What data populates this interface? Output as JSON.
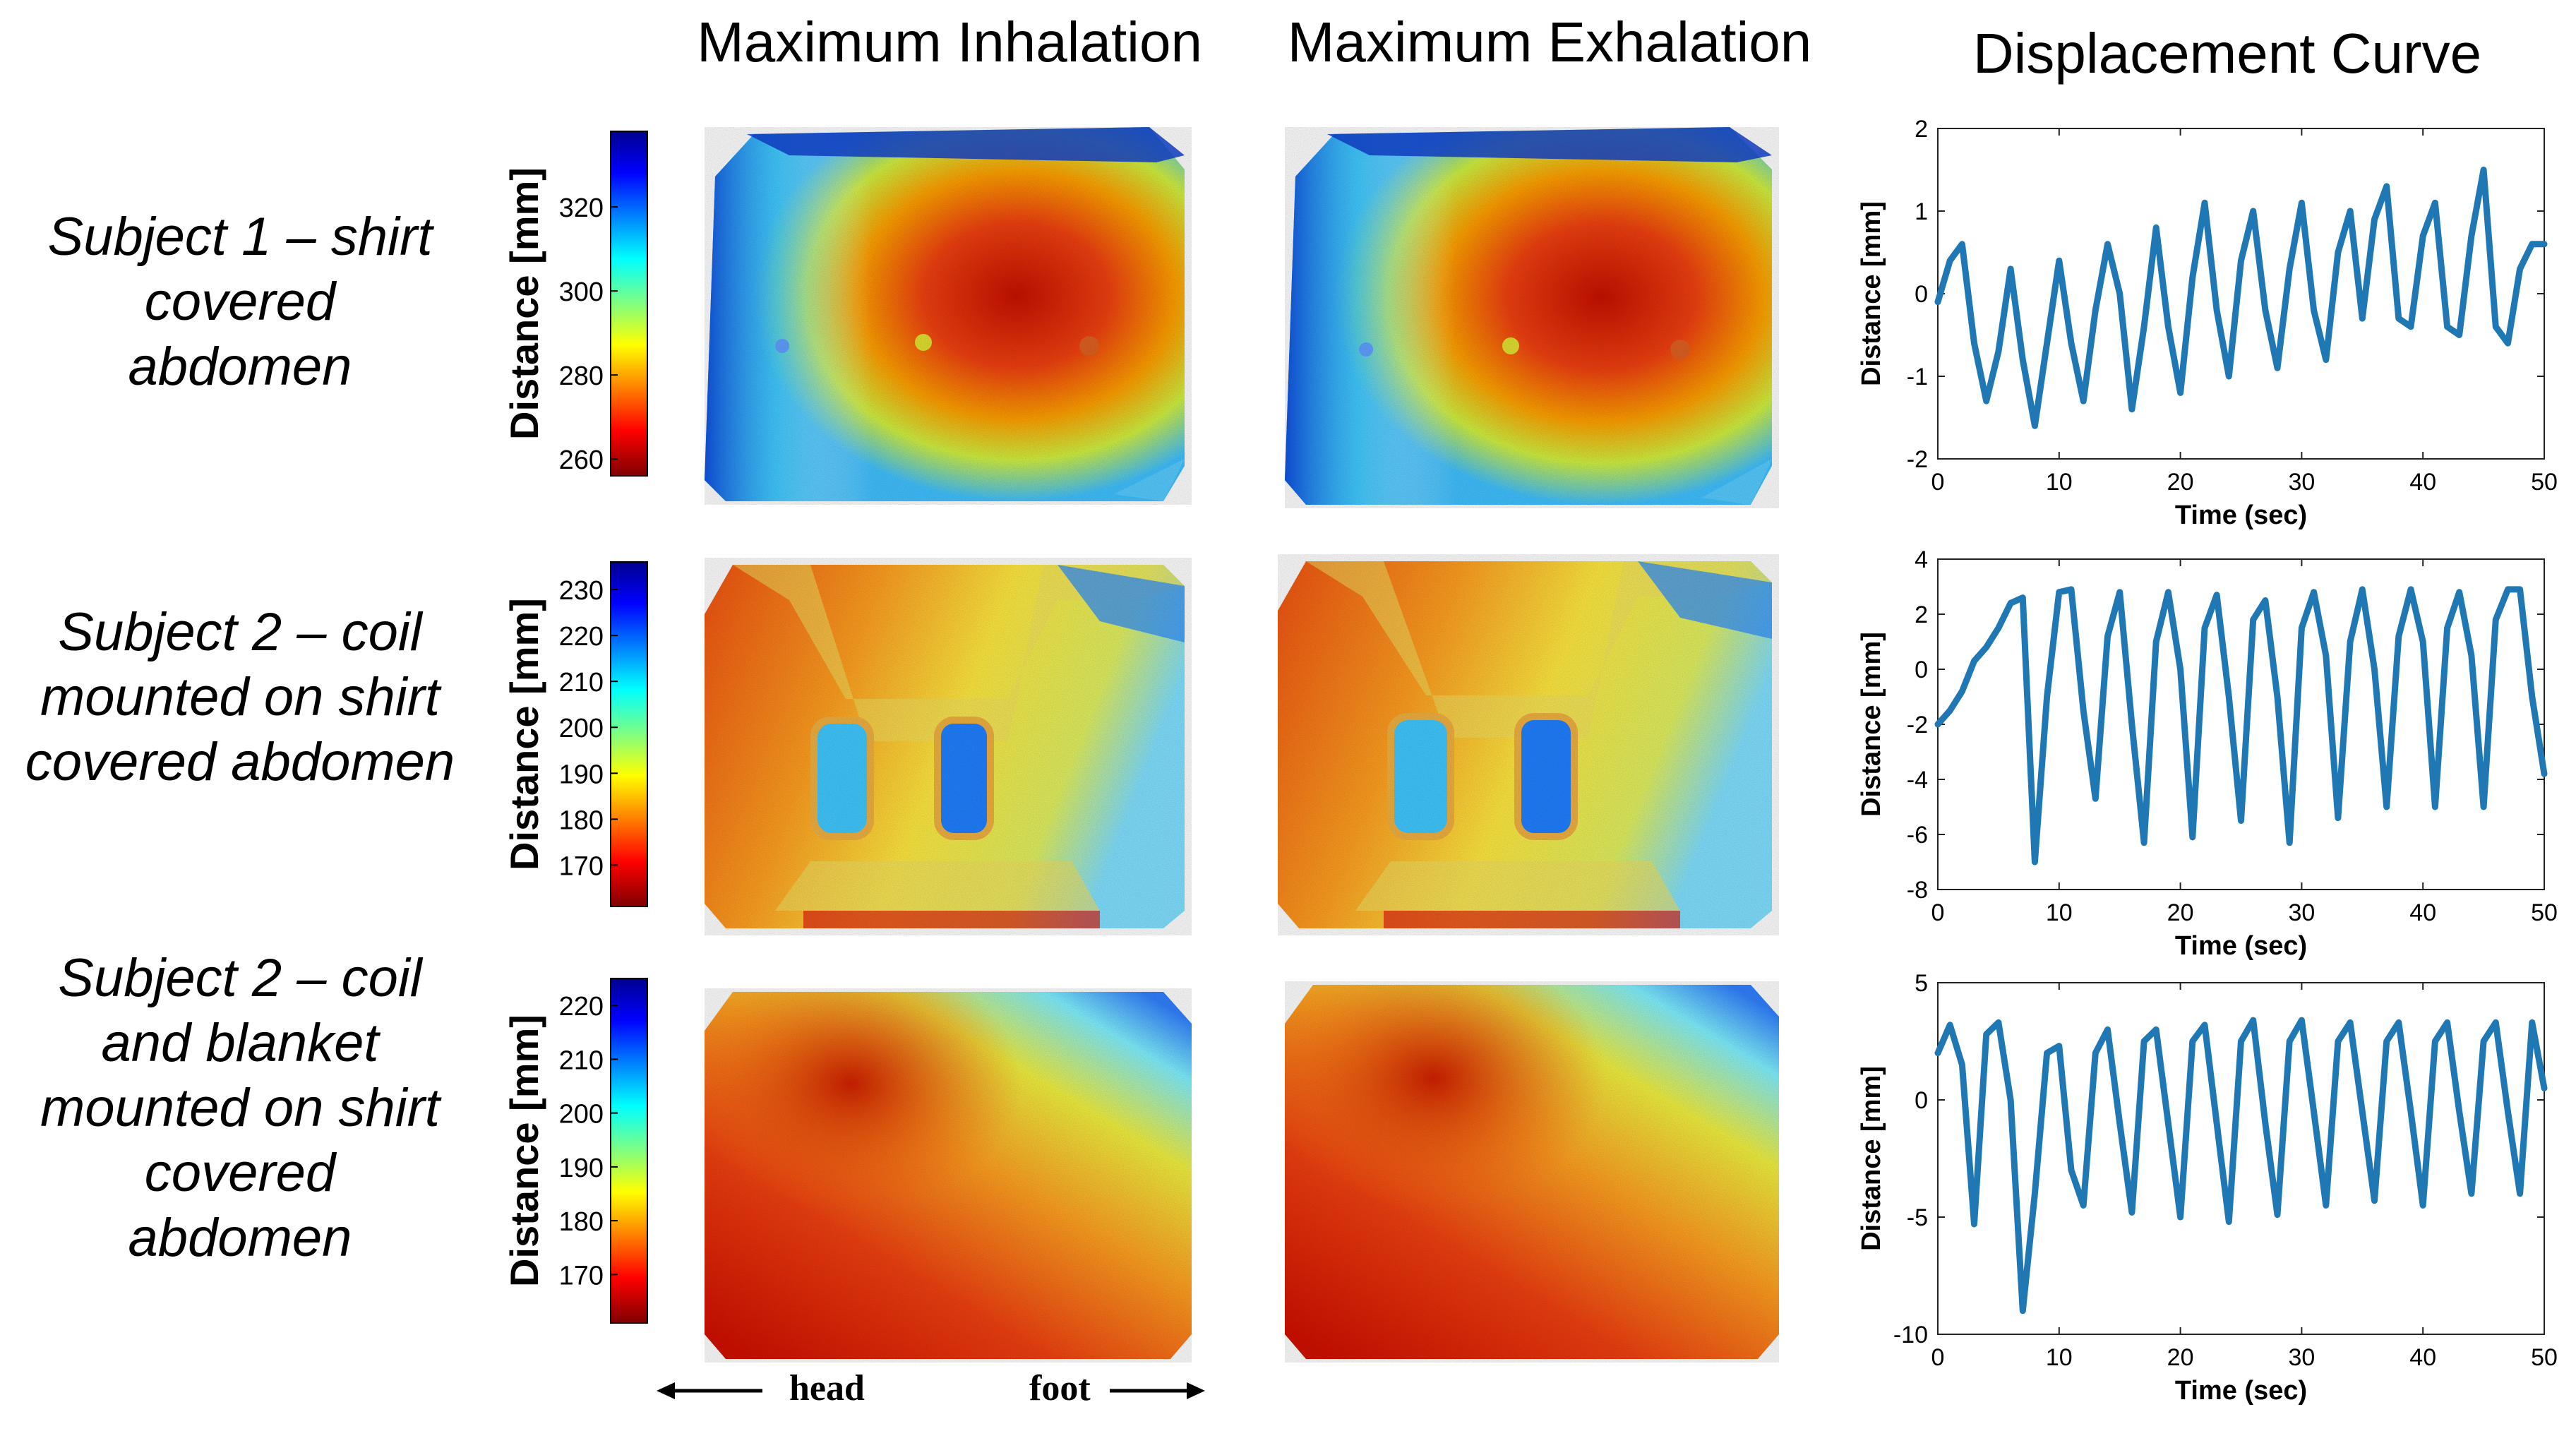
{
  "column_titles": {
    "inhalation": "Maximum Inhalation",
    "exhalation": "Maximum Exhalation",
    "curve": "Displacement Curve"
  },
  "rows": [
    {
      "label": [
        "Subject 1 – shirt",
        "covered",
        "abdomen"
      ]
    },
    {
      "label": [
        "Subject 2 – coil",
        "mounted on shirt",
        "covered abdomen"
      ]
    },
    {
      "label": [
        "Subject 2 – coil",
        "and blanket",
        "mounted on shirt",
        "covered",
        "abdomen"
      ]
    }
  ],
  "direction_labels": {
    "head": "head",
    "foot": "foot"
  },
  "colors": {
    "curve": "#1f77b4"
  },
  "chart_data": [
    {
      "type": "heatmap",
      "name": "subject1-colorbar",
      "colorbar_label": "Distance [mm]",
      "ticks": [
        320,
        300,
        280,
        260
      ],
      "range": [
        256,
        338
      ]
    },
    {
      "type": "heatmap",
      "name": "subject2-coil-colorbar",
      "colorbar_label": "Distance [mm]",
      "ticks": [
        230,
        220,
        210,
        200,
        190,
        180,
        170
      ],
      "range": [
        161,
        236
      ]
    },
    {
      "type": "heatmap",
      "name": "subject2-blanket-colorbar",
      "colorbar_label": "Distance [mm]",
      "ticks": [
        220,
        210,
        200,
        190,
        180,
        170
      ],
      "range": [
        161,
        225
      ]
    },
    {
      "type": "line",
      "title": "",
      "xlabel": "Time (sec)",
      "ylabel": "Distance [mm]",
      "xlim": [
        0,
        50
      ],
      "ylim": [
        -2,
        2
      ],
      "xticks": [
        0,
        10,
        20,
        30,
        40,
        50
      ],
      "yticks": [
        2,
        1,
        0,
        -1,
        -2
      ],
      "series": [
        {
          "name": "displacement",
          "x": [
            0,
            1,
            2,
            3,
            4,
            5,
            6,
            7,
            8,
            9,
            10,
            11,
            12,
            13,
            14,
            15,
            16,
            17,
            18,
            19,
            20,
            21,
            22,
            23,
            24,
            25,
            26,
            27,
            28,
            29,
            30,
            31,
            32,
            33,
            34,
            35,
            36,
            37,
            38,
            39,
            40,
            41,
            42,
            43,
            44,
            45,
            46,
            47,
            48,
            49,
            50
          ],
          "values": [
            -0.1,
            0.4,
            0.6,
            -0.6,
            -1.3,
            -0.7,
            0.3,
            -0.8,
            -1.6,
            -0.6,
            0.4,
            -0.6,
            -1.3,
            -0.2,
            0.6,
            0.0,
            -1.4,
            -0.4,
            0.8,
            -0.4,
            -1.2,
            0.2,
            1.1,
            -0.2,
            -1.0,
            0.4,
            1.0,
            -0.2,
            -0.9,
            0.3,
            1.1,
            -0.2,
            -0.8,
            0.5,
            1.0,
            -0.3,
            0.9,
            1.3,
            -0.3,
            -0.4,
            0.7,
            1.1,
            -0.4,
            -0.5,
            0.7,
            1.5,
            -0.4,
            -0.6,
            0.3,
            0.6,
            0.6
          ]
        }
      ]
    },
    {
      "type": "line",
      "title": "",
      "xlabel": "Time (sec)",
      "ylabel": "Distance [mm]",
      "xlim": [
        0,
        50
      ],
      "ylim": [
        -8,
        4
      ],
      "xticks": [
        0,
        10,
        20,
        30,
        40,
        50
      ],
      "yticks": [
        4,
        2,
        0,
        -2,
        -4,
        -6,
        -8
      ],
      "series": [
        {
          "name": "displacement",
          "x": [
            0,
            1,
            2,
            3,
            4,
            5,
            6,
            7,
            8,
            9,
            10,
            11,
            12,
            13,
            14,
            15,
            16,
            17,
            18,
            19,
            20,
            21,
            22,
            23,
            24,
            25,
            26,
            27,
            28,
            29,
            30,
            31,
            32,
            33,
            34,
            35,
            36,
            37,
            38,
            39,
            40,
            41,
            42,
            43,
            44,
            45,
            46,
            47,
            48,
            49,
            50
          ],
          "values": [
            -2.0,
            -1.5,
            -0.8,
            0.3,
            0.8,
            1.5,
            2.4,
            2.6,
            -7.0,
            -1.0,
            2.8,
            2.9,
            -1.5,
            -4.7,
            1.2,
            2.8,
            -2.0,
            -6.3,
            1.0,
            2.8,
            0.0,
            -6.1,
            1.5,
            2.7,
            -1.0,
            -5.5,
            1.8,
            2.5,
            -1.0,
            -6.3,
            1.5,
            2.8,
            0.5,
            -5.4,
            1.0,
            2.9,
            0.0,
            -5.0,
            1.2,
            2.9,
            1.0,
            -5.0,
            1.5,
            2.8,
            0.5,
            -5.0,
            1.8,
            2.9,
            2.9,
            -1.0,
            -3.8
          ]
        }
      ]
    },
    {
      "type": "line",
      "title": "",
      "xlabel": "Time (sec)",
      "ylabel": "Distance [mm]",
      "xlim": [
        0,
        50
      ],
      "ylim": [
        -10,
        5
      ],
      "xticks": [
        0,
        10,
        20,
        30,
        40,
        50
      ],
      "yticks": [
        5,
        0,
        -5,
        -10
      ],
      "series": [
        {
          "name": "displacement",
          "x": [
            0,
            1,
            2,
            3,
            4,
            5,
            6,
            7,
            8,
            9,
            10,
            11,
            12,
            13,
            14,
            15,
            16,
            17,
            18,
            19,
            20,
            21,
            22,
            23,
            24,
            25,
            26,
            27,
            28,
            29,
            30,
            31,
            32,
            33,
            34,
            35,
            36,
            37,
            38,
            39,
            40,
            41,
            42,
            43,
            44,
            45,
            46,
            47,
            48,
            49,
            50
          ],
          "values": [
            2.0,
            3.2,
            1.5,
            -5.3,
            2.8,
            3.3,
            0.0,
            -9.0,
            -4.0,
            2.0,
            2.3,
            -3.0,
            -4.5,
            2.0,
            3.0,
            -1.0,
            -4.8,
            2.5,
            3.0,
            -1.0,
            -5.0,
            2.5,
            3.2,
            -1.0,
            -5.2,
            2.5,
            3.4,
            -1.0,
            -4.9,
            2.5,
            3.4,
            -0.5,
            -4.5,
            2.5,
            3.3,
            -0.5,
            -4.3,
            2.5,
            3.3,
            -0.5,
            -4.5,
            2.5,
            3.3,
            -0.5,
            -4.0,
            2.5,
            3.3,
            -0.5,
            -4.0,
            3.3,
            0.5
          ]
        }
      ]
    }
  ]
}
